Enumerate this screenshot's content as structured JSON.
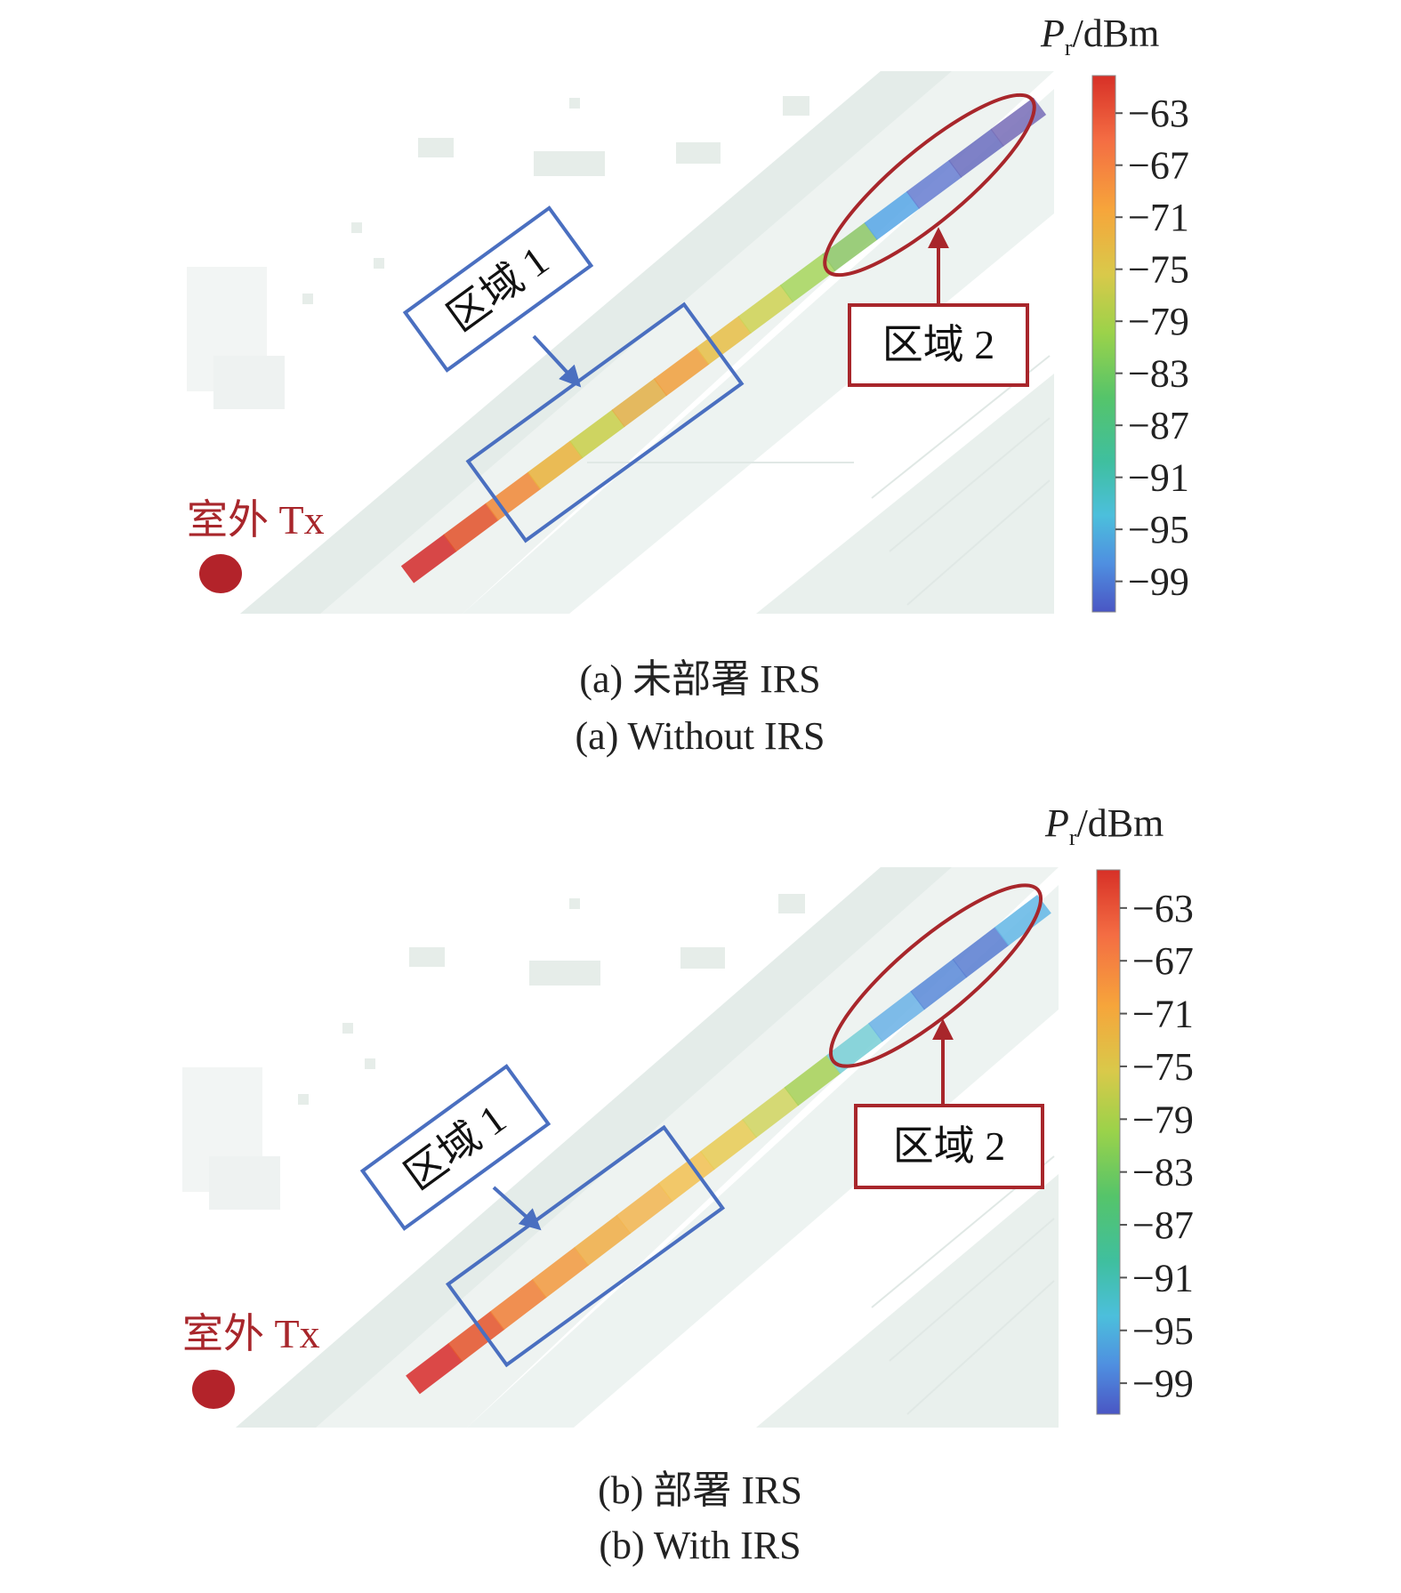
{
  "colorbar": {
    "title_symbol": "P",
    "title_subscript": "r",
    "title_unit": "/dBm",
    "ticks": [
      "−63",
      "−67",
      "−71",
      "−75",
      "−79",
      "−83",
      "−87",
      "−91",
      "−95",
      "−99"
    ],
    "colors": [
      "#d73027",
      "#f46d43",
      "#f6a53b",
      "#d9c94a",
      "#9bd24a",
      "#55c46a",
      "#3fbf9f",
      "#4cbfdc",
      "#4f8fe0",
      "#4a56c4"
    ]
  },
  "panels": [
    {
      "id": "a",
      "tx_label": "室外 Tx",
      "region1_label": "区域 1",
      "region2_label": "区域 2",
      "caption_cn": "(a) 未部署 IRS",
      "caption_en": "(a) Without IRS",
      "strip_colors": [
        "#d42f2f",
        "#e2542e",
        "#f08a3a",
        "#e9b33f",
        "#c9cf4c",
        "#e2b04a",
        "#f0a140",
        "#e7bf4a",
        "#cfd357",
        "#a9d660",
        "#8fc76a",
        "#5aa7e6",
        "#6a7fd2",
        "#6c6fbf",
        "#7a6fb8"
      ]
    },
    {
      "id": "b",
      "tx_label": "室外 Tx",
      "region1_label": "区域 1",
      "region2_label": "区域 2",
      "caption_cn": "(b) 部署 IRS",
      "caption_en": "(b) With IRS",
      "strip_colors": [
        "#d8302f",
        "#e5562f",
        "#f0813a",
        "#f39b42",
        "#f0ae49",
        "#f2b653",
        "#f3c255",
        "#e8cc57",
        "#d2d562",
        "#a8d15a",
        "#7bcfd6",
        "#6db3e6",
        "#5c8bd8",
        "#5c7fd2",
        "#66b8e6"
      ]
    }
  ]
}
